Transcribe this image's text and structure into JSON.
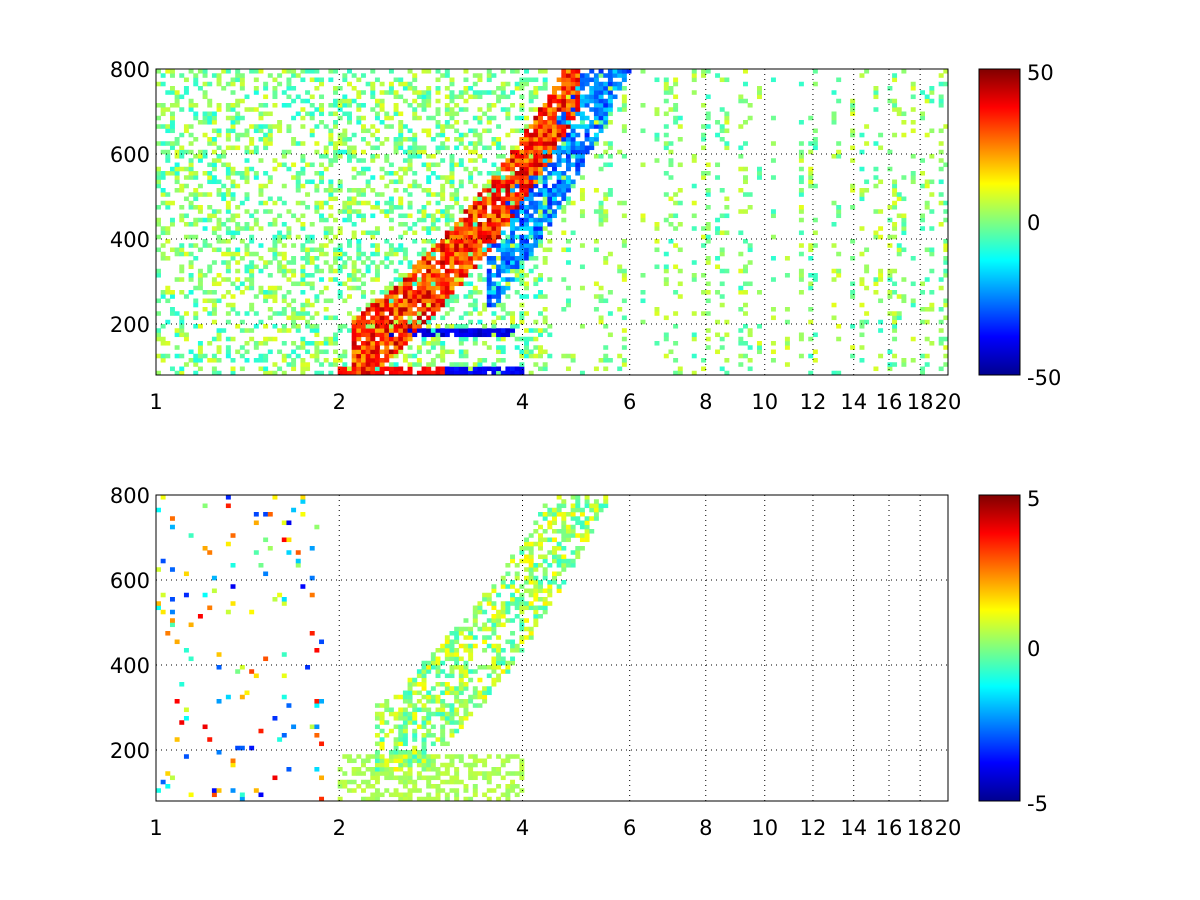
{
  "chart_data": [
    {
      "type": "heatmap",
      "title": "",
      "xlabel": "",
      "ylabel": "",
      "x_scale": "log",
      "xlim": [
        1,
        20
      ],
      "ylim": [
        80,
        800
      ],
      "x_ticks": [
        1,
        2,
        4,
        6,
        8,
        10,
        12,
        14,
        16,
        18,
        20
      ],
      "x_tick_labels": [
        "1",
        "2",
        "4",
        "6",
        "8",
        "10",
        "12",
        "14",
        "16",
        "18",
        "20"
      ],
      "y_ticks": [
        200,
        400,
        600,
        800
      ],
      "y_tick_labels": [
        "200",
        "400",
        "600",
        "800"
      ],
      "grid": true,
      "colormap": "jet",
      "clim": [
        -50,
        50
      ],
      "colorbar_labels": [
        "50",
        "0",
        "-50"
      ],
      "features": [
        {
          "description_x": [
            2.2,
            4.8
          ],
          "y": [
            150,
            700
          ],
          "value": 35,
          "shape": "diagonal ridge"
        },
        {
          "x": [
            3.0,
            5.5
          ],
          "y": [
            80,
            650
          ],
          "value": -30,
          "shape": "diagonal trough"
        },
        {
          "x": [
            2.2,
            3.8
          ],
          "y": [
            180,
            180
          ],
          "value": -40,
          "shape": "band"
        },
        {
          "x": [
            2.0,
            4.0
          ],
          "y": [
            80,
            100
          ],
          "value": 40,
          "shape": "band"
        }
      ]
    },
    {
      "type": "heatmap",
      "title": "",
      "xlabel": "",
      "ylabel": "",
      "x_scale": "log",
      "xlim": [
        1,
        20
      ],
      "ylim": [
        80,
        800
      ],
      "x_ticks": [
        1,
        2,
        4,
        6,
        8,
        10,
        12,
        14,
        16,
        18,
        20
      ],
      "x_tick_labels": [
        "1",
        "2",
        "4",
        "6",
        "8",
        "10",
        "12",
        "14",
        "16",
        "18",
        "20"
      ],
      "y_ticks": [
        200,
        400,
        600,
        800
      ],
      "y_tick_labels": [
        "200",
        "400",
        "600",
        "800"
      ],
      "grid": true,
      "colormap": "jet",
      "clim": [
        -5,
        5
      ],
      "colorbar_labels": [
        "5",
        "0",
        "-5"
      ]
    }
  ]
}
